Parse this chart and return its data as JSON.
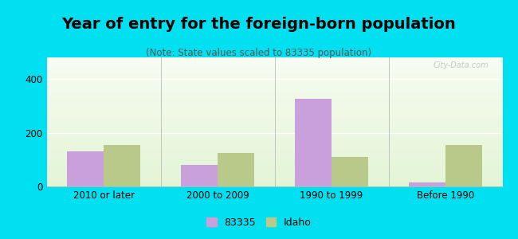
{
  "title": "Year of entry for the foreign-born population",
  "subtitle": "(Note: State values scaled to 83335 population)",
  "categories": [
    "2010 or later",
    "2000 to 2009",
    "1990 to 1999",
    "Before 1990"
  ],
  "series_83335": [
    130,
    80,
    325,
    15
  ],
  "series_idaho": [
    155,
    125,
    110,
    155
  ],
  "color_83335": "#c9a0dc",
  "color_idaho": "#b8c98a",
  "ylim": [
    0,
    480
  ],
  "yticks": [
    0,
    200,
    400
  ],
  "background_outer": "#00e0f0",
  "bar_width": 0.32,
  "legend_label_83335": "83335",
  "legend_label_idaho": "Idaho",
  "title_fontsize": 14,
  "subtitle_fontsize": 8.5,
  "watermark": "City-Data.com"
}
